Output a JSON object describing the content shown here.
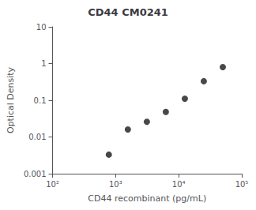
{
  "chart_data": {
    "type": "scatter",
    "title": "CD44 CM0241",
    "xlabel": "CD44 recombinant (pg/mL)",
    "ylabel": "Optical Density",
    "x": [
      780,
      1563,
      3125,
      6250,
      12500,
      25000,
      50000
    ],
    "values": [
      0.0033,
      0.016,
      0.026,
      0.048,
      0.11,
      0.33,
      0.8
    ],
    "color": "#1a1a1a",
    "log": true,
    "xlim": [
      100,
      100000
    ],
    "xticks": [
      {
        "value": 100,
        "label": "10²"
      },
      {
        "value": 1000,
        "label": "10³"
      },
      {
        "value": 10000,
        "label": "10⁴"
      },
      {
        "value": 100000,
        "label": "10⁵"
      }
    ],
    "ylim": [
      0.001,
      10
    ],
    "yticks": [
      0.001,
      0.01,
      0.1,
      1,
      10
    ],
    "grid": false
  }
}
